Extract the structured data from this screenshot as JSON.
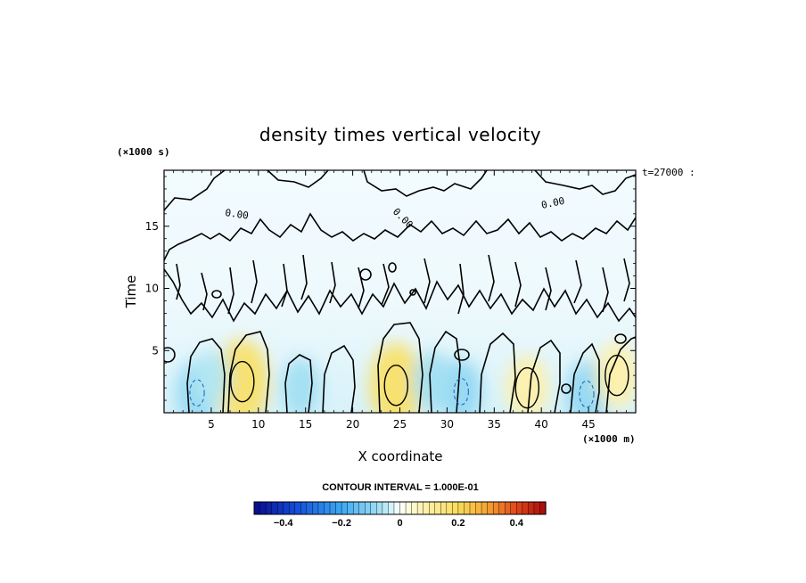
{
  "chart_data": {
    "type": "heatmap",
    "title": "density times vertical velocity",
    "xlabel": "X coordinate",
    "ylabel": "Time",
    "x_unit": "(×1000 m)",
    "y_unit": "(×1000 s)",
    "xlim": [
      0,
      50
    ],
    "ylim": [
      0,
      19.5
    ],
    "x_ticks": [
      "5",
      "10",
      "15",
      "20",
      "25",
      "30",
      "35",
      "40",
      "45"
    ],
    "y_ticks": [
      "5",
      "10",
      "15"
    ],
    "x_tick_values": [
      5,
      10,
      15,
      20,
      25,
      30,
      35,
      40,
      45
    ],
    "y_tick_values": [
      5,
      10,
      15
    ],
    "time_annotation": "t=27000 :",
    "contour_interval": "CONTOUR INTERVAL = 1.000E-01",
    "contour_labels": [
      "0.00",
      "0.00",
      "0.00"
    ],
    "colorbar": {
      "range": [
        -0.5,
        0.5
      ],
      "ticks": [
        "−0.4",
        "−0.2",
        "0",
        "0.2",
        "0.4"
      ],
      "tick_values": [
        -0.4,
        -0.2,
        0,
        0.2,
        0.4
      ],
      "colors": {
        "strong_negative": "#0a0a8c",
        "negative": "#2f7fe6",
        "weak_negative": "#a8e4f0",
        "zero": "#ffffff",
        "weak_positive": "#fff3b0",
        "positive": "#f5a030",
        "strong_positive": "#b01010"
      }
    },
    "features": [
      {
        "x": 8.3,
        "y": 2.5,
        "value": 0.2
      },
      {
        "x": 24.6,
        "y": 2.2,
        "value": 0.2
      },
      {
        "x": 3.5,
        "y": 1.6,
        "value": -0.1
      },
      {
        "x": 31.5,
        "y": 1.7,
        "value": -0.1
      },
      {
        "x": 44.8,
        "y": 1.5,
        "value": -0.1
      },
      {
        "x": 38.5,
        "y": 2.0,
        "value": 0.1
      },
      {
        "x": 48.0,
        "y": 3.0,
        "value": 0.1
      },
      {
        "x": 14.5,
        "y": 2.0,
        "value": -0.08
      },
      {
        "x": 28.5,
        "y": 2.5,
        "value": -0.08
      },
      {
        "x": 5.0,
        "y": 2.8,
        "value": -0.06
      }
    ],
    "grid": false,
    "legend": "none"
  }
}
